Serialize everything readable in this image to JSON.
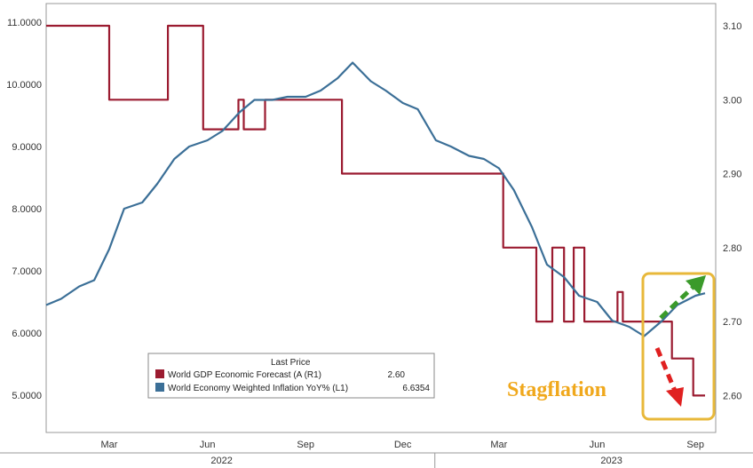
{
  "chart_data": {
    "type": "line",
    "x": [
      "2022-01-01",
      "2022-02-01",
      "2022-02-15",
      "2022-03-01",
      "2022-03-15",
      "2022-04-01",
      "2022-04-15",
      "2022-05-01",
      "2022-05-15",
      "2022-06-01",
      "2022-06-15",
      "2022-07-01",
      "2022-07-15",
      "2022-08-01",
      "2022-08-15",
      "2022-09-01",
      "2022-09-15",
      "2022-10-01",
      "2022-10-15",
      "2022-11-01",
      "2022-11-15",
      "2022-12-01",
      "2022-12-15",
      "2023-01-01",
      "2023-01-15",
      "2023-02-01",
      "2023-02-15",
      "2023-03-01",
      "2023-03-15",
      "2023-04-01",
      "2023-04-15",
      "2023-05-01",
      "2023-05-15",
      "2023-06-01",
      "2023-06-15",
      "2023-07-01",
      "2023-07-15",
      "2023-08-01",
      "2023-08-15",
      "2023-09-01",
      "2023-09-10"
    ],
    "series": [
      {
        "name": "World GDP Economic Forecast (A  (R1)",
        "axis": "right",
        "color": "#9b1b30",
        "step": true,
        "points": [
          [
            "2022-01-01",
            3.1
          ],
          [
            "2022-03-01",
            3.1
          ],
          [
            "2022-03-01",
            3.0
          ],
          [
            "2022-04-25",
            3.0
          ],
          [
            "2022-04-25",
            3.1
          ],
          [
            "2022-05-28",
            3.1
          ],
          [
            "2022-05-28",
            2.96
          ],
          [
            "2022-06-30",
            2.96
          ],
          [
            "2022-06-30",
            3.0
          ],
          [
            "2022-07-05",
            3.0
          ],
          [
            "2022-07-05",
            2.96
          ],
          [
            "2022-07-25",
            2.96
          ],
          [
            "2022-07-25",
            3.0
          ],
          [
            "2022-10-05",
            3.0
          ],
          [
            "2022-10-05",
            2.9
          ],
          [
            "2023-03-05",
            2.9
          ],
          [
            "2023-03-05",
            2.8
          ],
          [
            "2023-04-05",
            2.8
          ],
          [
            "2023-04-05",
            2.7
          ],
          [
            "2023-04-20",
            2.7
          ],
          [
            "2023-04-20",
            2.8
          ],
          [
            "2023-05-01",
            2.8
          ],
          [
            "2023-05-01",
            2.7
          ],
          [
            "2023-05-10",
            2.7
          ],
          [
            "2023-05-10",
            2.8
          ],
          [
            "2023-05-20",
            2.8
          ],
          [
            "2023-05-20",
            2.7
          ],
          [
            "2023-06-20",
            2.7
          ],
          [
            "2023-06-20",
            2.74
          ],
          [
            "2023-06-25",
            2.74
          ],
          [
            "2023-06-25",
            2.7
          ],
          [
            "2023-08-10",
            2.7
          ],
          [
            "2023-08-10",
            2.65
          ],
          [
            "2023-08-30",
            2.65
          ],
          [
            "2023-08-30",
            2.6
          ],
          [
            "2023-09-10",
            2.6
          ]
        ],
        "last": "2.60"
      },
      {
        "name": "World Economy Weighted Inflation YoY%  (L1)",
        "axis": "left",
        "color": "#3b6f97",
        "step": false,
        "points": [
          [
            "2022-01-01",
            6.45
          ],
          [
            "2022-01-15",
            6.55
          ],
          [
            "2022-02-01",
            6.75
          ],
          [
            "2022-02-15",
            6.85
          ],
          [
            "2022-03-01",
            7.35
          ],
          [
            "2022-03-15",
            8.0
          ],
          [
            "2022-04-01",
            8.1
          ],
          [
            "2022-04-15",
            8.4
          ],
          [
            "2022-05-01",
            8.8
          ],
          [
            "2022-05-15",
            9.0
          ],
          [
            "2022-06-01",
            9.1
          ],
          [
            "2022-06-15",
            9.25
          ],
          [
            "2022-07-01",
            9.55
          ],
          [
            "2022-07-15",
            9.75
          ],
          [
            "2022-08-01",
            9.75
          ],
          [
            "2022-08-15",
            9.8
          ],
          [
            "2022-09-01",
            9.8
          ],
          [
            "2022-09-15",
            9.9
          ],
          [
            "2022-10-01",
            10.1
          ],
          [
            "2022-10-15",
            10.35
          ],
          [
            "2022-11-01",
            10.05
          ],
          [
            "2022-11-15",
            9.9
          ],
          [
            "2022-12-01",
            9.7
          ],
          [
            "2022-12-15",
            9.6
          ],
          [
            "2023-01-01",
            9.1
          ],
          [
            "2023-01-15",
            9.0
          ],
          [
            "2023-02-01",
            8.85
          ],
          [
            "2023-02-15",
            8.8
          ],
          [
            "2023-03-01",
            8.65
          ],
          [
            "2023-03-15",
            8.3
          ],
          [
            "2023-04-01",
            7.7
          ],
          [
            "2023-04-15",
            7.1
          ],
          [
            "2023-05-01",
            6.9
          ],
          [
            "2023-05-15",
            6.6
          ],
          [
            "2023-06-01",
            6.5
          ],
          [
            "2023-06-15",
            6.2
          ],
          [
            "2023-07-01",
            6.1
          ],
          [
            "2023-07-15",
            5.95
          ],
          [
            "2023-08-01",
            6.2
          ],
          [
            "2023-08-15",
            6.45
          ],
          [
            "2023-09-01",
            6.6
          ],
          [
            "2023-09-10",
            6.64
          ]
        ],
        "last": "6.6354"
      }
    ],
    "y_left": {
      "ticks": [
        "11.0000",
        "10.0000",
        "9.0000",
        "8.0000",
        "7.0000",
        "6.0000",
        "5.0000"
      ],
      "values": [
        11,
        10,
        9,
        8,
        7,
        6,
        5
      ],
      "ylim": [
        4.4,
        11.3
      ]
    },
    "y_right": {
      "ticks": [
        "3.10",
        "3.00",
        "2.90",
        "2.80",
        "2.70",
        "2.60"
      ],
      "values": [
        3.1,
        3.0,
        2.9,
        2.8,
        2.7,
        2.6
      ],
      "ylim": [
        2.55,
        3.13
      ]
    },
    "x_ticks": [
      "Mar",
      "Jun",
      "Sep",
      "Dec",
      "Mar",
      "Jun",
      "Sep"
    ],
    "x_tick_dates": [
      "2022-03-01",
      "2022-06-01",
      "2022-09-01",
      "2022-12-01",
      "2023-03-01",
      "2023-06-01",
      "2023-09-01"
    ],
    "x_years": [
      "2022",
      "2023"
    ],
    "x_range": [
      "2022-01-01",
      "2023-09-20"
    ],
    "grid": true,
    "legend": {
      "title": "Last Price",
      "placement": "bottom-left",
      "entries": [
        {
          "label": "World GDP Economic Forecast (A  (R1)",
          "value": "2.60",
          "color": "#9b1b30"
        },
        {
          "label": "World Economy Weighted Inflation YoY%  (L1)",
          "value": "6.6354",
          "color": "#3b6f97"
        }
      ]
    },
    "annotation": {
      "text": "Stagflation",
      "color": "#f0a81c",
      "box_color": "#e8b83a",
      "up_arrow_color": "#3a9a2a",
      "down_arrow_color": "#e02020"
    }
  }
}
